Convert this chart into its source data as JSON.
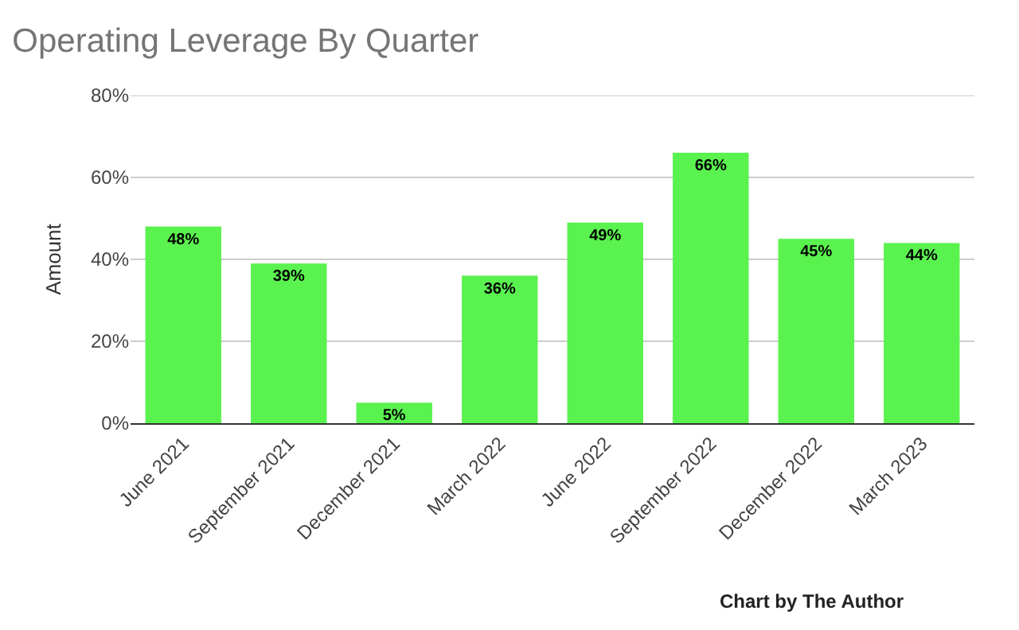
{
  "chart_data": {
    "type": "bar",
    "title": "Operating Leverage By Quarter",
    "ylabel": "Amount",
    "categories": [
      "June 2021",
      "September 2021",
      "December 2021",
      "March 2022",
      "June 2022",
      "September 2022",
      "December 2022",
      "March 2023"
    ],
    "values": [
      48,
      39,
      5,
      36,
      49,
      66,
      45,
      44
    ],
    "value_labels": [
      "48%",
      "39%",
      "5%",
      "36%",
      "49%",
      "66%",
      "45%",
      "44%"
    ],
    "color": "#5af24f",
    "ylim": [
      0,
      80
    ],
    "yticks": [
      {
        "value": 0,
        "label": "0%"
      },
      {
        "value": 20,
        "label": "20%"
      },
      {
        "value": 40,
        "label": "40%"
      },
      {
        "value": 60,
        "label": "60%"
      },
      {
        "value": 80,
        "label": "80%"
      }
    ],
    "grid": "y",
    "annotations": [
      "Chart by The Author"
    ]
  }
}
